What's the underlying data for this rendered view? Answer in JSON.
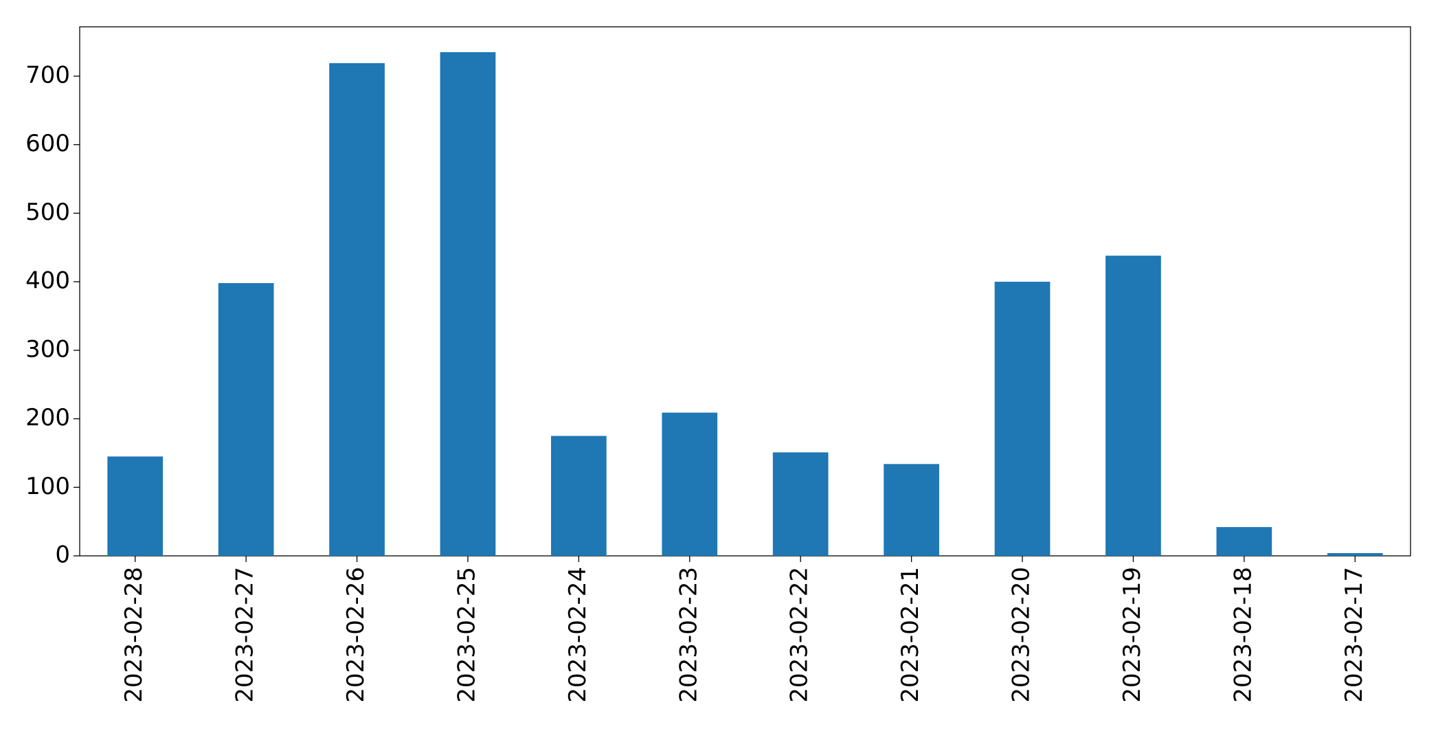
{
  "chart_data": {
    "type": "bar",
    "categories": [
      "2023-02-28",
      "2023-02-27",
      "2023-02-26",
      "2023-02-25",
      "2023-02-24",
      "2023-02-23",
      "2023-02-22",
      "2023-02-21",
      "2023-02-20",
      "2023-02-19",
      "2023-02-18",
      "2023-02-17"
    ],
    "values": [
      145,
      398,
      719,
      735,
      175,
      209,
      151,
      134,
      400,
      438,
      42,
      4
    ],
    "color": "#1f77b4",
    "ylim": [
      0,
      772
    ],
    "yticks": [
      0,
      100,
      200,
      300,
      400,
      500,
      600,
      700
    ],
    "grid": false
  }
}
